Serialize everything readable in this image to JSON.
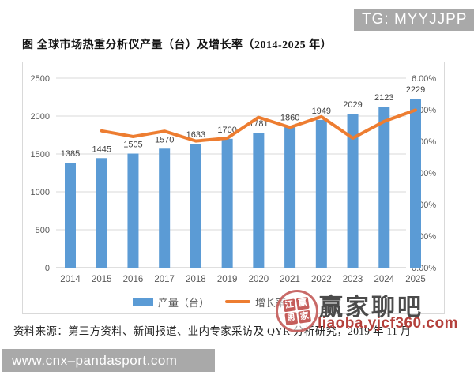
{
  "title": "图 全球市场热重分析仪产量（台）及增长率（2014-2025 年）",
  "source_note": "资料来源：第三方资料、新闻报道、业内专家采访及 QYR 分析研究，2019 年 11 月",
  "watermarks": {
    "tg_badge": "TG: MYYJJPP",
    "site_badge": "www.cnx–pandasport.com",
    "brand_name": "赢家聊吧",
    "brand_url": "liaoba.yjcf360.com",
    "seal_chars": [
      "江",
      "赢",
      "恩",
      "家"
    ]
  },
  "colors": {
    "bar": "#5B9BD5",
    "line": "#ED7D31",
    "badge_bg": "#A9A9A9",
    "seal_red": "#C0504D",
    "brand_text": "#4B4B4B",
    "brand_url_red": "#B5413C",
    "grid": "#D9D9D9",
    "axis_text": "#595959",
    "bar_label_text": "#3F3F3F"
  },
  "chart_data": {
    "type": "combo",
    "title": "图 全球市场热重分析仪产量（台）及增长率（2014-2025 年）",
    "categories": [
      "2014",
      "2015",
      "2016",
      "2017",
      "2018",
      "2019",
      "2020",
      "2021",
      "2022",
      "2023",
      "2024",
      "2025"
    ],
    "series": [
      {
        "name": "产量（台）",
        "type": "bar",
        "axis": "left",
        "color": "#5B9BD5",
        "values": [
          1385,
          1445,
          1505,
          1570,
          1633,
          1700,
          1781,
          1860,
          1949,
          2029,
          2123,
          2229
        ]
      },
      {
        "name": "增长率",
        "type": "line",
        "axis": "right",
        "color": "#ED7D31",
        "unit": "%",
        "values": [
          null,
          4.33,
          4.15,
          4.32,
          4.01,
          4.1,
          4.76,
          4.44,
          4.78,
          4.1,
          4.63,
          4.99
        ]
      }
    ],
    "left_axis": {
      "min": 0,
      "max": 2500,
      "ticks": [
        "2500",
        "2000",
        "1500",
        "1000",
        "500",
        "0"
      ]
    },
    "right_axis": {
      "min": 0,
      "max": 6,
      "ticks": [
        "6.00%",
        "5.00%",
        "4.00%",
        "3.00%",
        "2.00%",
        "1.00%",
        "0.00%"
      ]
    },
    "grid": true,
    "legend_position": "bottom",
    "bar_labels_visible": true
  }
}
